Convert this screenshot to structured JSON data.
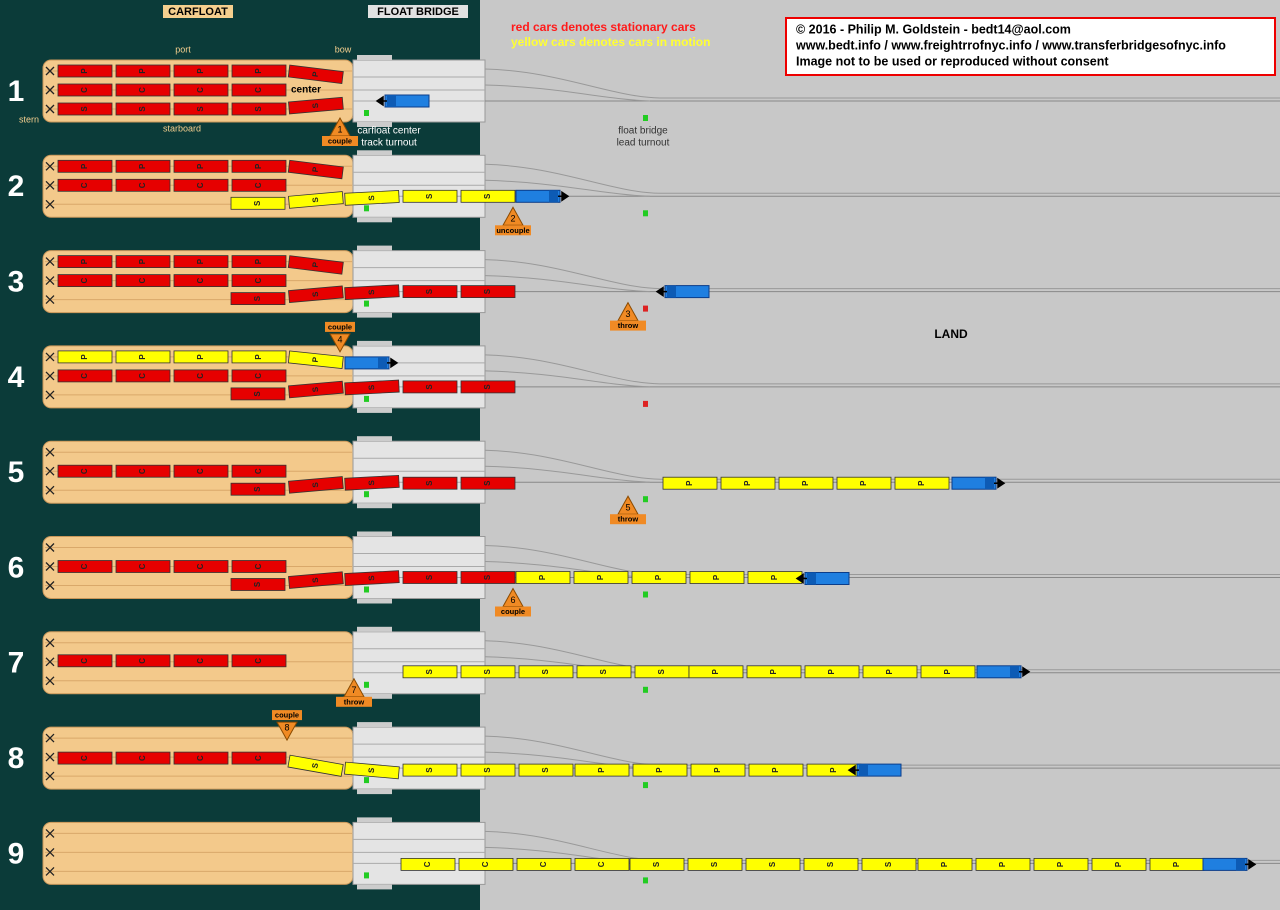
{
  "headers": {
    "carfloat": "CARFLOAT",
    "float_bridge": "FLOAT BRIDGE"
  },
  "legend": {
    "red": "red cars denotes stationary cars",
    "yellow": "yellow cars denotes cars in motion"
  },
  "copyright": [
    "© 2016 - Philip M. Goldstein - bedt14@aol.com",
    "www.bedt.info / www.freightrrofnyc.info / www.transferbridgesofnyc.info",
    "Image not to be used or reproduced without consent"
  ],
  "land": "LAND",
  "labels": {
    "port": "port",
    "bow": "bow",
    "center": "center",
    "starboard": "starboard",
    "stern": "stern",
    "carfloat_turnout": [
      "carfloat center",
      "track turnout"
    ],
    "bridge_turnout": [
      "float bridge",
      "lead turnout"
    ]
  },
  "panels": [
    {
      "number": "1",
      "step": {
        "number": "1",
        "action": "couple"
      },
      "runs": [
        {
          "color": "#e60000",
          "cars": [
            "P",
            "P",
            "P",
            "P"
          ]
        },
        {
          "color": "#e60000",
          "cars": [
            "P"
          ]
        },
        {
          "color": "#e60000",
          "cars": [
            "C",
            "C",
            "C",
            "C"
          ]
        },
        {
          "color": "#e60000",
          "cars": [
            "S",
            "S",
            "S",
            "S"
          ]
        },
        {
          "color": "#e60000",
          "cars": [
            "S"
          ]
        }
      ]
    },
    {
      "number": "2",
      "step": {
        "number": "2",
        "action": "uncouple"
      },
      "runs": [
        {
          "color": "#e60000",
          "cars": [
            "P",
            "P",
            "P",
            "P"
          ]
        },
        {
          "color": "#e60000",
          "cars": [
            "P"
          ]
        },
        {
          "color": "#e60000",
          "cars": [
            "C",
            "C",
            "C",
            "C"
          ]
        },
        {
          "color": "#ffff00",
          "cars": [
            "S"
          ]
        },
        {
          "color": "#ffff00",
          "cars": [
            "S"
          ]
        },
        {
          "color": "#ffff00",
          "cars": [
            "S"
          ]
        },
        {
          "color": "#ffff00",
          "cars": [
            "S",
            "S"
          ]
        }
      ]
    },
    {
      "number": "3",
      "step": {
        "number": "3",
        "action": "throw"
      },
      "runs": [
        {
          "color": "#e60000",
          "cars": [
            "P",
            "P",
            "P",
            "P"
          ]
        },
        {
          "color": "#e60000",
          "cars": [
            "P"
          ]
        },
        {
          "color": "#e60000",
          "cars": [
            "C",
            "C",
            "C",
            "C"
          ]
        },
        {
          "color": "#e60000",
          "cars": [
            "S"
          ]
        },
        {
          "color": "#e60000",
          "cars": [
            "S"
          ]
        },
        {
          "color": "#e60000",
          "cars": [
            "S"
          ]
        },
        {
          "color": "#e60000",
          "cars": [
            "S",
            "S"
          ]
        }
      ]
    },
    {
      "number": "4",
      "step": {
        "number": "4",
        "action": "couple"
      },
      "runs": [
        {
          "color": "#ffff00",
          "cars": [
            "P",
            "P",
            "P",
            "P"
          ]
        },
        {
          "color": "#ffff00",
          "cars": [
            "P"
          ]
        },
        {
          "color": "#e60000",
          "cars": [
            "C",
            "C",
            "C",
            "C"
          ]
        },
        {
          "color": "#e60000",
          "cars": [
            "S"
          ]
        },
        {
          "color": "#e60000",
          "cars": [
            "S"
          ]
        },
        {
          "color": "#e60000",
          "cars": [
            "S"
          ]
        },
        {
          "color": "#e60000",
          "cars": [
            "S",
            "S"
          ]
        }
      ]
    },
    {
      "number": "5",
      "step": {
        "number": "5",
        "action": "throw"
      },
      "runs": [
        {
          "color": "#e60000",
          "cars": [
            "C",
            "C",
            "C",
            "C"
          ]
        },
        {
          "color": "#e60000",
          "cars": [
            "S"
          ]
        },
        {
          "color": "#e60000",
          "cars": [
            "S"
          ]
        },
        {
          "color": "#e60000",
          "cars": [
            "S"
          ]
        },
        {
          "color": "#e60000",
          "cars": [
            "S",
            "S"
          ]
        },
        {
          "color": "#ffff00",
          "cars": [
            "P",
            "P",
            "P",
            "P",
            "P"
          ]
        }
      ]
    },
    {
      "number": "6",
      "step": {
        "number": "6",
        "action": "couple"
      },
      "runs": [
        {
          "color": "#e60000",
          "cars": [
            "C",
            "C",
            "C",
            "C"
          ]
        },
        {
          "color": "#e60000",
          "cars": [
            "S"
          ]
        },
        {
          "color": "#e60000",
          "cars": [
            "S"
          ]
        },
        {
          "color": "#e60000",
          "cars": [
            "S"
          ]
        },
        {
          "color": "#e60000",
          "cars": [
            "S",
            "S"
          ]
        },
        {
          "color": "#ffff00",
          "cars": [
            "P",
            "P",
            "P",
            "P",
            "P"
          ]
        }
      ]
    },
    {
      "number": "7",
      "step": {
        "number": "7",
        "action": "throw"
      },
      "runs": [
        {
          "color": "#e60000",
          "cars": [
            "C",
            "C",
            "C",
            "C"
          ]
        },
        {
          "color": "#ffff00",
          "cars": [
            "S",
            "S",
            "S",
            "S",
            "S"
          ]
        },
        {
          "color": "#ffff00",
          "cars": [
            "P",
            "P",
            "P",
            "P",
            "P"
          ]
        }
      ]
    },
    {
      "number": "8",
      "step": {
        "number": "8",
        "action": "couple"
      },
      "runs": [
        {
          "color": "#e60000",
          "cars": [
            "C",
            "C",
            "C",
            "C"
          ]
        },
        {
          "color": "#ffff00",
          "cars": [
            "S"
          ]
        },
        {
          "color": "#ffff00",
          "cars": [
            "S"
          ]
        },
        {
          "color": "#ffff00",
          "cars": [
            "S",
            "S",
            "S"
          ]
        },
        {
          "color": "#ffff00",
          "cars": [
            "P",
            "P",
            "P",
            "P",
            "P"
          ]
        }
      ]
    },
    {
      "number": "9",
      "runs": [
        {
          "color": "#ffff00",
          "cars": [
            "C",
            "C",
            "C",
            "C"
          ]
        },
        {
          "color": "#ffff00",
          "cars": [
            "S",
            "S",
            "S",
            "S",
            "S"
          ]
        },
        {
          "color": "#ffff00",
          "cars": [
            "P",
            "P",
            "P",
            "P",
            "P"
          ]
        }
      ]
    }
  ]
}
